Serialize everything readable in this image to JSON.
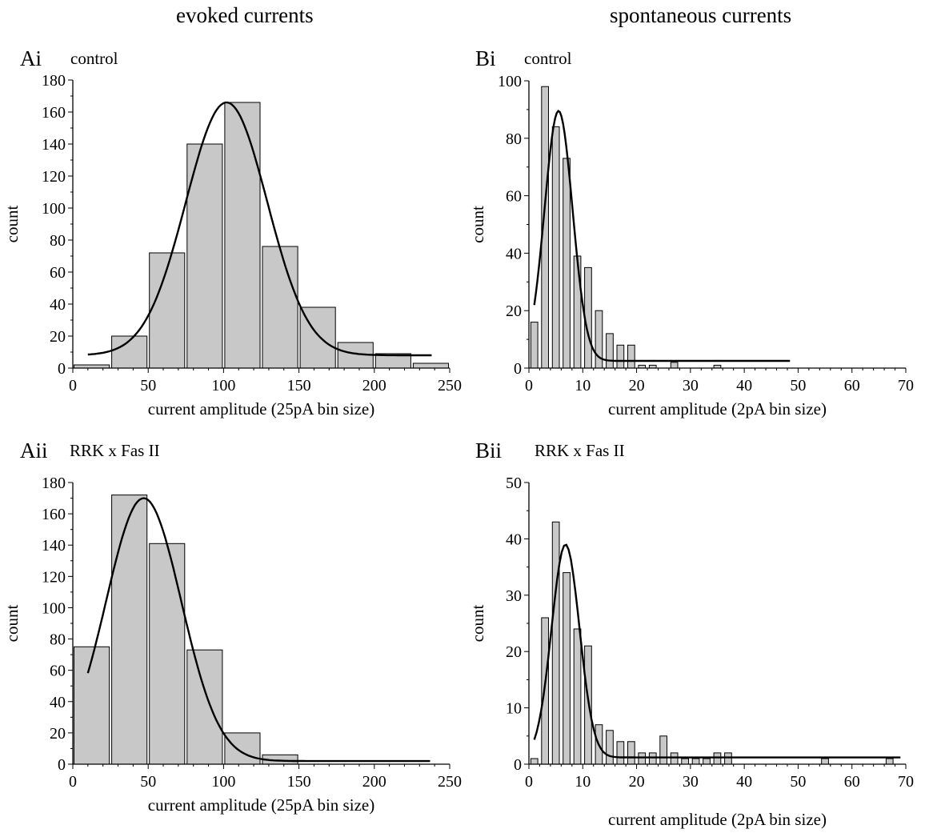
{
  "column_titles": {
    "left": "evoked currents",
    "right": "spontaneous currents"
  },
  "panels": [
    {
      "id": "Ai",
      "condition": "control"
    },
    {
      "id": "Bi",
      "condition": "control"
    },
    {
      "id": "Aii",
      "condition": "RRK x Fas II"
    },
    {
      "id": "Bii",
      "condition": "RRK x Fas II"
    }
  ],
  "colors": {
    "bar_fill": "#c8c8c8",
    "bar_stroke": "#000000",
    "fit_line": "#000000"
  },
  "chart_data": [
    {
      "type": "bar",
      "panel": "Ai",
      "title": "control",
      "xlabel": "current amplitude (25pA bin size)",
      "ylabel": "count",
      "xlim": [
        0,
        250
      ],
      "ylim": [
        0,
        180
      ],
      "xticks": [
        0,
        50,
        100,
        150,
        200,
        250
      ],
      "yticks": [
        0,
        20,
        40,
        60,
        80,
        100,
        120,
        140,
        160,
        180
      ],
      "bin_width": 25,
      "bars": [
        {
          "x": 12.5,
          "value": 2
        },
        {
          "x": 37.5,
          "value": 20
        },
        {
          "x": 62.5,
          "value": 72
        },
        {
          "x": 87.5,
          "value": 140
        },
        {
          "x": 112.5,
          "value": 166
        },
        {
          "x": 137.5,
          "value": 76
        },
        {
          "x": 162.5,
          "value": 38
        },
        {
          "x": 187.5,
          "value": 16
        },
        {
          "x": 212.5,
          "value": 9
        },
        {
          "x": 237.5,
          "value": 3
        }
      ],
      "fit": {
        "baseline": 8,
        "peak": 166,
        "center": 102,
        "sigma": 27,
        "x_range": [
          10,
          238
        ]
      },
      "grid": false
    },
    {
      "type": "bar",
      "panel": "Bi",
      "title": "control",
      "xlabel": "current amplitude (2pA bin size)",
      "ylabel": "count",
      "xlim": [
        0,
        70
      ],
      "ylim": [
        0,
        100
      ],
      "xticks": [
        0,
        10,
        20,
        30,
        40,
        50,
        60,
        70
      ],
      "yticks": [
        0,
        20,
        40,
        60,
        80,
        100
      ],
      "bin_width": 1.3,
      "bars": [
        {
          "x": 1,
          "value": 16
        },
        {
          "x": 3,
          "value": 98
        },
        {
          "x": 5,
          "value": 84
        },
        {
          "x": 7,
          "value": 73
        },
        {
          "x": 9,
          "value": 39
        },
        {
          "x": 11,
          "value": 35
        },
        {
          "x": 13,
          "value": 20
        },
        {
          "x": 15,
          "value": 12
        },
        {
          "x": 17,
          "value": 8
        },
        {
          "x": 19,
          "value": 8
        },
        {
          "x": 21,
          "value": 1
        },
        {
          "x": 23,
          "value": 1
        },
        {
          "x": 27,
          "value": 2
        },
        {
          "x": 35,
          "value": 1
        }
      ],
      "fit": {
        "baseline": 2.5,
        "peak": 89.5,
        "center": 5.5,
        "sigma": 2.6,
        "x_range": [
          1,
          48.5
        ]
      },
      "grid": false
    },
    {
      "type": "bar",
      "panel": "Aii",
      "title": "RRK x Fas II",
      "xlabel": "current amplitude (25pA bin size)",
      "ylabel": "count",
      "xlim": [
        0,
        250
      ],
      "ylim": [
        0,
        180
      ],
      "xticks": [
        0,
        50,
        100,
        150,
        200,
        250
      ],
      "yticks": [
        0,
        20,
        40,
        60,
        80,
        100,
        120,
        140,
        160,
        180
      ],
      "bin_width": 25,
      "bars": [
        {
          "x": 12.5,
          "value": 75
        },
        {
          "x": 37.5,
          "value": 172
        },
        {
          "x": 62.5,
          "value": 141
        },
        {
          "x": 87.5,
          "value": 73
        },
        {
          "x": 112.5,
          "value": 20
        },
        {
          "x": 137.5,
          "value": 6
        }
      ],
      "fit": {
        "baseline": 2,
        "peak": 170,
        "center": 47,
        "sigma": 25,
        "x_range": [
          10,
          237
        ]
      },
      "grid": false
    },
    {
      "type": "bar",
      "panel": "Bii",
      "title": "RRK x Fas II",
      "xlabel": "current amplitude (2pA bin size)",
      "ylabel": "count",
      "xlim": [
        0,
        70
      ],
      "ylim": [
        0,
        50
      ],
      "xticks": [
        0,
        10,
        20,
        30,
        40,
        50,
        60,
        70
      ],
      "yticks": [
        0,
        10,
        20,
        30,
        40,
        50
      ],
      "bin_width": 1.3,
      "bars": [
        {
          "x": 1,
          "value": 1
        },
        {
          "x": 3,
          "value": 26
        },
        {
          "x": 5,
          "value": 43
        },
        {
          "x": 7,
          "value": 34
        },
        {
          "x": 9,
          "value": 24
        },
        {
          "x": 11,
          "value": 21
        },
        {
          "x": 13,
          "value": 7
        },
        {
          "x": 15,
          "value": 6
        },
        {
          "x": 17,
          "value": 4
        },
        {
          "x": 19,
          "value": 4
        },
        {
          "x": 21,
          "value": 2
        },
        {
          "x": 23,
          "value": 2
        },
        {
          "x": 25,
          "value": 5
        },
        {
          "x": 27,
          "value": 2
        },
        {
          "x": 29,
          "value": 1
        },
        {
          "x": 31,
          "value": 1
        },
        {
          "x": 33,
          "value": 1
        },
        {
          "x": 35,
          "value": 2
        },
        {
          "x": 37,
          "value": 2
        },
        {
          "x": 55,
          "value": 1
        },
        {
          "x": 67,
          "value": 1
        }
      ],
      "fit": {
        "baseline": 1.2,
        "peak": 39,
        "center": 6.8,
        "sigma": 2.6,
        "x_range": [
          1,
          69
        ]
      },
      "grid": false
    }
  ]
}
